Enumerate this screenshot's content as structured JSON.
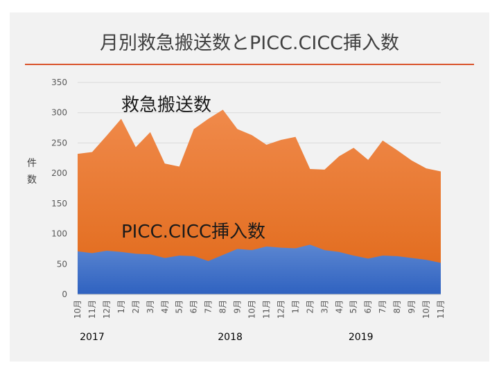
{
  "chart_data": {
    "type": "area",
    "title": "月別救急搬送数とPICC.CICC挿入数",
    "ylabel": "件数",
    "ylim": [
      0,
      350
    ],
    "yticks": [
      0,
      50,
      100,
      150,
      200,
      250,
      300,
      350
    ],
    "categories": [
      "10月",
      "11月",
      "12月",
      "1月",
      "2月",
      "3月",
      "4月",
      "5月",
      "6月",
      "7月",
      "8月",
      "9月",
      "10月",
      "11月",
      "12月",
      "1月",
      "2月",
      "3月",
      "4月",
      "5月",
      "6月",
      "7月",
      "8月",
      "9月",
      "10月",
      "11月"
    ],
    "year_labels": [
      {
        "text": "2017",
        "index": 1
      },
      {
        "text": "2018",
        "index": 10.5
      },
      {
        "text": "2019",
        "index": 19.5
      }
    ],
    "series": [
      {
        "name": "救急搬送数",
        "color": "#ed7d31",
        "values": [
          232,
          235,
          262,
          290,
          243,
          268,
          216,
          211,
          273,
          290,
          305,
          273,
          263,
          247,
          255,
          260,
          207,
          206,
          228,
          242,
          222,
          254,
          238,
          221,
          208,
          203
        ]
      },
      {
        "name": "PICC.CICC挿入数",
        "color": "#4472c4",
        "values": [
          71,
          68,
          72,
          70,
          67,
          66,
          60,
          64,
          63,
          55,
          65,
          75,
          73,
          79,
          77,
          76,
          82,
          73,
          70,
          64,
          59,
          64,
          63,
          60,
          57,
          52
        ]
      }
    ],
    "grid": true,
    "legend": "in-chart labels"
  }
}
